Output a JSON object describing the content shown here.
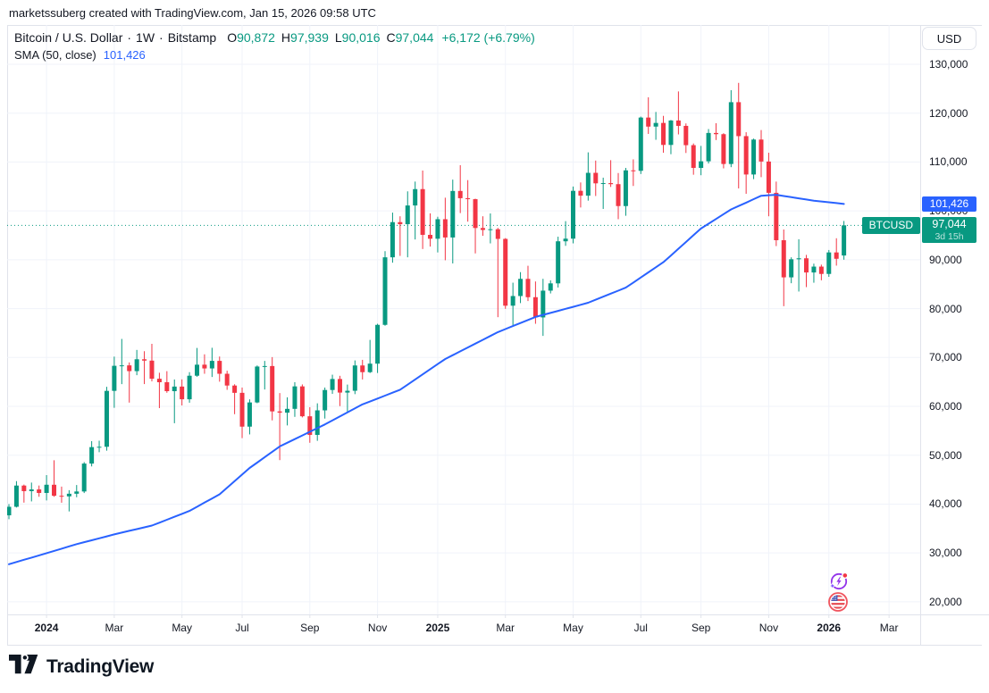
{
  "watermark": "marketssuberg created with TradingView.com, Jan 15, 2026 09:58 UTC",
  "legend": {
    "title": "Bitcoin / U.S. Dollar",
    "separator": "·",
    "interval": "1W",
    "exchange": "Bitstamp",
    "ohlc": [
      {
        "k": "O",
        "v": "90,872"
      },
      {
        "k": "H",
        "v": "97,939"
      },
      {
        "k": "L",
        "v": "90,016"
      },
      {
        "k": "C",
        "v": "97,044"
      }
    ],
    "change": "+6,172 (+6.79%)",
    "indicator": {
      "name": "SMA (50, close)",
      "value": "101,426"
    }
  },
  "price_scale": {
    "currency_button": "USD",
    "ticks": [
      {
        "text": "130,000",
        "value": 130000
      },
      {
        "text": "120,000",
        "value": 120000
      },
      {
        "text": "110,000",
        "value": 110000
      },
      {
        "text": "100,000",
        "value": 100000
      },
      {
        "text": "90,000",
        "value": 90000
      },
      {
        "text": "80,000",
        "value": 80000
      },
      {
        "text": "70,000",
        "value": 70000
      },
      {
        "text": "60,000",
        "value": 60000
      },
      {
        "text": "50,000",
        "value": 50000
      },
      {
        "text": "40,000",
        "value": 40000
      },
      {
        "text": "30,000",
        "value": 30000
      },
      {
        "text": "20,000",
        "value": 20000
      }
    ],
    "sma_badge": {
      "text": "101,426",
      "value": 101426
    },
    "price_badge": {
      "text": "97,044",
      "countdown": "3d 15h",
      "value": 97044
    },
    "symbol_tag": "BTCUSD"
  },
  "time_scale": {
    "labels": [
      {
        "text": "2024",
        "i": 5,
        "bold": true
      },
      {
        "text": "Mar",
        "i": 14
      },
      {
        "text": "May",
        "i": 23
      },
      {
        "text": "Jul",
        "i": 31
      },
      {
        "text": "Sep",
        "i": 40
      },
      {
        "text": "Nov",
        "i": 49
      },
      {
        "text": "2025",
        "i": 57,
        "bold": true
      },
      {
        "text": "Mar",
        "i": 66
      },
      {
        "text": "May",
        "i": 75
      },
      {
        "text": "Jul",
        "i": 84
      },
      {
        "text": "Sep",
        "i": 92
      },
      {
        "text": "Nov",
        "i": 101
      },
      {
        "text": "2026",
        "i": 109,
        "bold": true
      },
      {
        "text": "Mar",
        "i": 117
      }
    ]
  },
  "footer": {
    "brand": "TradingView"
  },
  "icons": {
    "ai_event": "sparkle-lightning-event",
    "us_event": "us-flag-economic-event"
  },
  "colors": {
    "up": "#089981",
    "down": "#F23645",
    "sma": "#2962FF",
    "grid": "#F0F3FA",
    "border": "#E0E3EB",
    "text": "#131722"
  },
  "chart_data": {
    "type": "candlestick",
    "title": "Bitcoin / U.S. Dollar",
    "exchange": "Bitstamp",
    "interval": "1W",
    "ylim": [
      20000,
      130000
    ],
    "y_ticks": [
      20000,
      30000,
      40000,
      50000,
      60000,
      70000,
      80000,
      90000,
      100000,
      110000,
      120000,
      130000
    ],
    "grid": true,
    "price_line": 97044,
    "sma_period": 50,
    "sma_current": 101426,
    "columns": [
      "week_start",
      "open",
      "high",
      "low",
      "close"
    ],
    "candles": [
      [
        "2023-11-27",
        37700,
        40000,
        36900,
        39450
      ],
      [
        "2023-12-04",
        39450,
        44700,
        39300,
        43790
      ],
      [
        "2023-12-11",
        43790,
        43990,
        40300,
        42650
      ],
      [
        "2023-12-18",
        42650,
        44400,
        40550,
        43000
      ],
      [
        "2023-12-25",
        43000,
        43800,
        41500,
        42280
      ],
      [
        "2024-01-01",
        42280,
        45930,
        40750,
        43960
      ],
      [
        "2024-01-08",
        43960,
        48970,
        41500,
        41700
      ],
      [
        "2024-01-15",
        41700,
        43580,
        40280,
        41580
      ],
      [
        "2024-01-22",
        41580,
        42850,
        38500,
        42120
      ],
      [
        "2024-01-29",
        42120,
        43900,
        41400,
        42580
      ],
      [
        "2024-02-05",
        42580,
        48590,
        42260,
        48290
      ],
      [
        "2024-02-12",
        48290,
        52880,
        47710,
        51660
      ],
      [
        "2024-02-19",
        51660,
        52970,
        50620,
        51730
      ],
      [
        "2024-02-26",
        51730,
        64000,
        50930,
        63170
      ],
      [
        "2024-03-04",
        63170,
        70180,
        59700,
        68300
      ],
      [
        "2024-03-11",
        68300,
        73800,
        64550,
        68390
      ],
      [
        "2024-03-18",
        68390,
        68990,
        60770,
        67210
      ],
      [
        "2024-03-25",
        67210,
        71550,
        66380,
        69640
      ],
      [
        "2024-04-01",
        69640,
        71290,
        64560,
        69360
      ],
      [
        "2024-04-08",
        69360,
        72800,
        65110,
        65650
      ],
      [
        "2024-04-15",
        65650,
        66880,
        59640,
        64940
      ],
      [
        "2024-04-22",
        64940,
        67200,
        62780,
        63110
      ],
      [
        "2024-04-29",
        63110,
        65500,
        56550,
        64050
      ],
      [
        "2024-05-06",
        64050,
        65520,
        60190,
        61450
      ],
      [
        "2024-05-13",
        61450,
        67000,
        60750,
        66270
      ],
      [
        "2024-05-20",
        66270,
        71950,
        66060,
        68530
      ],
      [
        "2024-05-27",
        68530,
        70650,
        66670,
        67760
      ],
      [
        "2024-06-03",
        67760,
        71990,
        66010,
        69310
      ],
      [
        "2024-06-10",
        69310,
        70200,
        65050,
        66670
      ],
      [
        "2024-06-17",
        66670,
        67290,
        63380,
        64260
      ],
      [
        "2024-06-24",
        64260,
        64520,
        58400,
        62770
      ],
      [
        "2024-07-01",
        62770,
        63850,
        53500,
        55850
      ],
      [
        "2024-07-08",
        55850,
        61430,
        54260,
        60800
      ],
      [
        "2024-07-15",
        60800,
        68370,
        60640,
        68150
      ],
      [
        "2024-07-22",
        68150,
        69300,
        63450,
        68250
      ],
      [
        "2024-07-29",
        68250,
        70080,
        57130,
        58970
      ],
      [
        "2024-08-05",
        58970,
        62720,
        49000,
        58710
      ],
      [
        "2024-08-12",
        58710,
        61850,
        56100,
        59490
      ],
      [
        "2024-08-19",
        59490,
        64950,
        57850,
        64090
      ],
      [
        "2024-08-26",
        64090,
        64490,
        57740,
        57970
      ],
      [
        "2024-09-02",
        57970,
        59830,
        52550,
        54160
      ],
      [
        "2024-09-09",
        54160,
        60620,
        52950,
        59180
      ],
      [
        "2024-09-16",
        59180,
        63850,
        57500,
        63350
      ],
      [
        "2024-09-23",
        63350,
        66480,
        62550,
        65600
      ],
      [
        "2024-09-30",
        65600,
        66250,
        60050,
        62820
      ],
      [
        "2024-10-07",
        62820,
        64460,
        58950,
        63190
      ],
      [
        "2024-10-14",
        63190,
        69400,
        62500,
        68370
      ],
      [
        "2024-10-21",
        68370,
        69520,
        65500,
        67000
      ],
      [
        "2024-10-28",
        67000,
        73600,
        66820,
        68740
      ],
      [
        "2024-11-04",
        68740,
        76900,
        66830,
        76680
      ],
      [
        "2024-11-11",
        76680,
        91750,
        76500,
        90500
      ],
      [
        "2024-11-18",
        90500,
        99650,
        89400,
        97700
      ],
      [
        "2024-11-25",
        97700,
        98900,
        90790,
        97280
      ],
      [
        "2024-12-02",
        97280,
        104000,
        90500,
        101110
      ],
      [
        "2024-12-09",
        101110,
        106000,
        94150,
        104460
      ],
      [
        "2024-12-16",
        104460,
        108260,
        92200,
        95100
      ],
      [
        "2024-12-23",
        95100,
        99500,
        92700,
        94300
      ],
      [
        "2024-12-30",
        94300,
        98800,
        91500,
        98300
      ],
      [
        "2025-01-06",
        98300,
        102700,
        89900,
        94560
      ],
      [
        "2025-01-13",
        94560,
        106400,
        89250,
        104080
      ],
      [
        "2025-01-20",
        104080,
        109350,
        99550,
        102600
      ],
      [
        "2025-01-27",
        102600,
        106300,
        97800,
        102400
      ],
      [
        "2025-02-03",
        102400,
        102500,
        91300,
        96500
      ],
      [
        "2025-02-10",
        96500,
        98900,
        94900,
        96100
      ],
      [
        "2025-02-17",
        96100,
        99480,
        93350,
        96250
      ],
      [
        "2025-02-24",
        96250,
        96520,
        78250,
        94270
      ],
      [
        "2025-03-03",
        94270,
        94430,
        79960,
        80600
      ],
      [
        "2025-03-10",
        80600,
        85310,
        76600,
        82580
      ],
      [
        "2025-03-17",
        82580,
        87470,
        81130,
        86090
      ],
      [
        "2025-03-24",
        86090,
        88770,
        81550,
        82340
      ],
      [
        "2025-03-31",
        82340,
        85560,
        76900,
        78200
      ],
      [
        "2025-04-07",
        78200,
        86100,
        74420,
        83680
      ],
      [
        "2025-04-14",
        83680,
        85790,
        83110,
        85170
      ],
      [
        "2025-04-21",
        85170,
        94720,
        84320,
        93780
      ],
      [
        "2025-04-28",
        93780,
        97900,
        92850,
        94320
      ],
      [
        "2025-05-05",
        94320,
        104980,
        93350,
        104110
      ],
      [
        "2025-05-12",
        104110,
        105820,
        100700,
        103120
      ],
      [
        "2025-05-19",
        103120,
        111980,
        102100,
        107790
      ],
      [
        "2025-05-26",
        107790,
        110300,
        103050,
        105640
      ],
      [
        "2025-06-02",
        105640,
        106800,
        100400,
        105690
      ],
      [
        "2025-06-09",
        105690,
        110380,
        104900,
        105470
      ],
      [
        "2025-06-16",
        105470,
        107750,
        98300,
        100990
      ],
      [
        "2025-06-23",
        100990,
        108800,
        99000,
        108300
      ],
      [
        "2025-06-30",
        108300,
        110550,
        105100,
        108200
      ],
      [
        "2025-07-07",
        108200,
        119300,
        107550,
        119100
      ],
      [
        "2025-07-14",
        119100,
        123250,
        115750,
        117250
      ],
      [
        "2025-07-21",
        117250,
        120250,
        114550,
        118000
      ],
      [
        "2025-07-28",
        118000,
        119450,
        111900,
        113500
      ],
      [
        "2025-08-04",
        113500,
        118600,
        111600,
        118500
      ],
      [
        "2025-08-11",
        118500,
        124450,
        115650,
        117400
      ],
      [
        "2025-08-18",
        117400,
        117900,
        111850,
        113450
      ],
      [
        "2025-08-25",
        113450,
        113800,
        107400,
        108800
      ],
      [
        "2025-09-01",
        108800,
        113300,
        107300,
        110150
      ],
      [
        "2025-09-08",
        110150,
        116750,
        109700,
        115950
      ],
      [
        "2025-09-15",
        115950,
        117950,
        114500,
        115700
      ],
      [
        "2025-09-22",
        115700,
        115900,
        108700,
        109600
      ],
      [
        "2025-09-29",
        109600,
        124700,
        108950,
        122250
      ],
      [
        "2025-10-06",
        122250,
        126200,
        104600,
        115300
      ],
      [
        "2025-10-13",
        115300,
        116100,
        103500,
        107450
      ],
      [
        "2025-10-20",
        107450,
        114800,
        106500,
        114600
      ],
      [
        "2025-10-27",
        114600,
        116550,
        106900,
        110100
      ],
      [
        "2025-11-03",
        110100,
        111900,
        98900,
        103700
      ],
      [
        "2025-11-10",
        103700,
        106000,
        92800,
        94000
      ],
      [
        "2025-11-17",
        94000,
        96200,
        80500,
        86400
      ],
      [
        "2025-11-24",
        86400,
        90500,
        85200,
        90100
      ],
      [
        "2025-12-01",
        90100,
        94200,
        83500,
        90300
      ],
      [
        "2025-12-08",
        90300,
        91000,
        84400,
        87400
      ],
      [
        "2025-12-15",
        87400,
        89200,
        85300,
        88600
      ],
      [
        "2025-12-22",
        88600,
        89000,
        85800,
        87100
      ],
      [
        "2025-12-29",
        87100,
        92000,
        86500,
        91500
      ],
      [
        "2026-01-05",
        91500,
        94400,
        88800,
        90200
      ],
      [
        "2026-01-12",
        90872,
        97939,
        90016,
        97044
      ]
    ],
    "sma50_anchors": [
      [
        0,
        27700
      ],
      [
        4,
        29500
      ],
      [
        9,
        31800
      ],
      [
        14,
        33800
      ],
      [
        19,
        35600
      ],
      [
        24,
        38600
      ],
      [
        28,
        42000
      ],
      [
        32,
        47400
      ],
      [
        36,
        51800
      ],
      [
        42,
        56300
      ],
      [
        47,
        60400
      ],
      [
        52,
        63400
      ],
      [
        58,
        69700
      ],
      [
        65,
        75200
      ],
      [
        70,
        78300
      ],
      [
        77,
        81200
      ],
      [
        82,
        84300
      ],
      [
        87,
        89500
      ],
      [
        92,
        96400
      ],
      [
        96,
        100300
      ],
      [
        100,
        103100
      ],
      [
        102,
        103300
      ],
      [
        104,
        102800
      ],
      [
        107,
        102100
      ],
      [
        111,
        101426
      ]
    ]
  }
}
